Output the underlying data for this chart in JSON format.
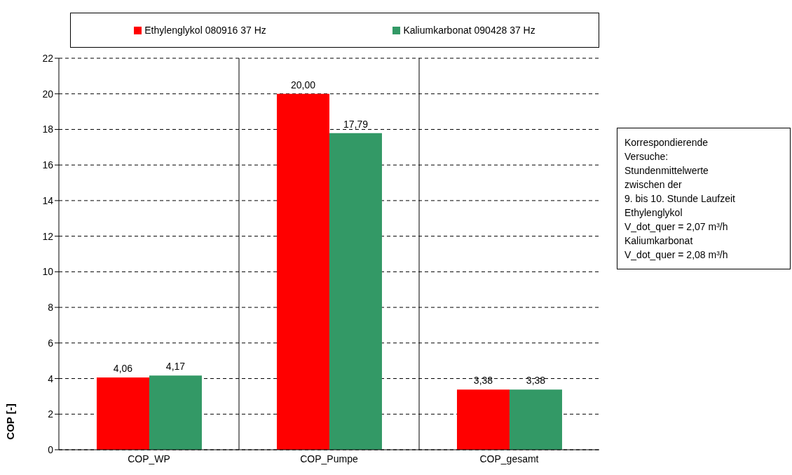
{
  "chart_data": {
    "type": "bar",
    "categories": [
      "COP_WP",
      "COP_Pumpe",
      "COP_gesamt"
    ],
    "series": [
      {
        "name": "Ethylenglykol 080916 37 Hz",
        "color": "#ff0000",
        "values": [
          4.06,
          20.0,
          3.38
        ],
        "value_labels": [
          "4,06",
          "20,00",
          "3,38"
        ]
      },
      {
        "name": "Kaliumkarbonat 090428 37 Hz",
        "color": "#339966",
        "values": [
          4.17,
          17.79,
          3.38
        ],
        "value_labels": [
          "4,17",
          "17,79",
          "3,38"
        ]
      }
    ],
    "ylabel": "COP [-]",
    "ylim": [
      0,
      22
    ],
    "yticks": [
      0,
      2,
      4,
      6,
      8,
      10,
      12,
      14,
      16,
      18,
      20,
      22
    ],
    "grid": true,
    "legend": "top",
    "annotations": [
      "Korrespondierende\nVersuche:\nStundenmittelwerte\nzwischen der\n9. bis 10. Stunde Laufzeit\nEthylenglykol\nV_dot_quer = 2,07 m³/h\nKaliumkarbonat\nV_dot_quer = 2,08 m³/h"
    ]
  }
}
